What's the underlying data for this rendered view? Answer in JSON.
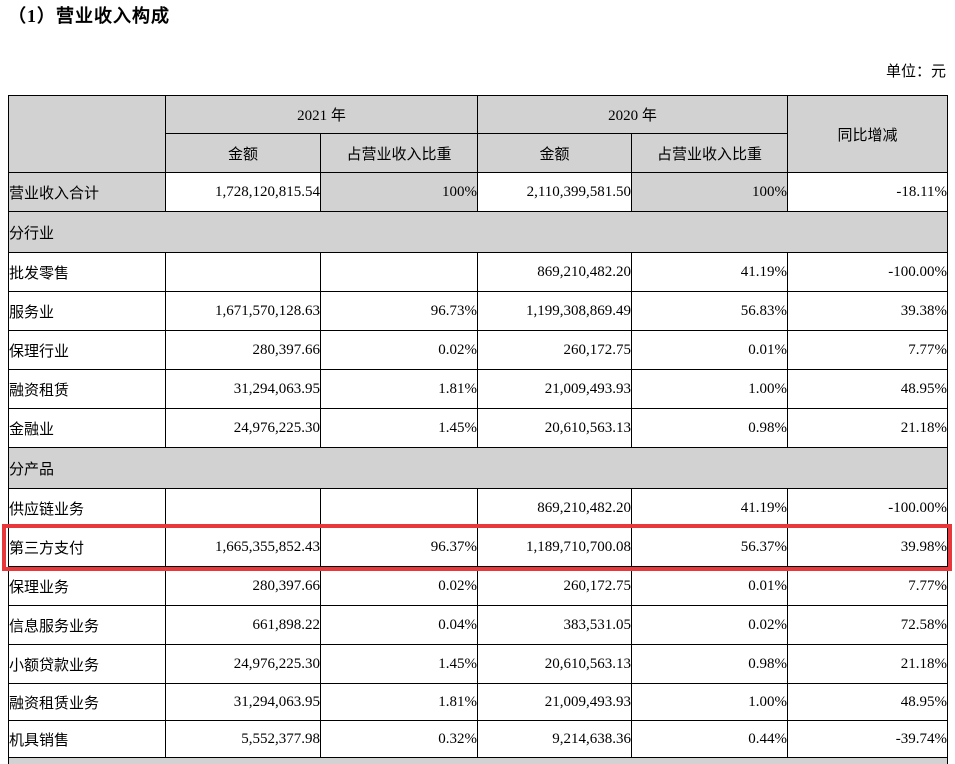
{
  "page": {
    "title": "（1）营业收入构成",
    "unit_label": "单位：元"
  },
  "table": {
    "header": {
      "year_2021": "2021 年",
      "year_2020": "2020 年",
      "yoy": "同比增减",
      "amount_2021": "金额",
      "share_2021": "占营业收入比重",
      "amount_2020": "金额",
      "share_2020": "占营业收入比重"
    },
    "rows": [
      {
        "label": "营业收入合计",
        "amount_2021": "1,728,120,815.54",
        "share_2021": "100%",
        "amount_2020": "2,110,399,581.50",
        "share_2020": "100%",
        "yoy": "-18.11%"
      },
      {
        "label": "分行业",
        "section": true
      },
      {
        "label": "批发零售",
        "amount_2021": "",
        "share_2021": "",
        "amount_2020": "869,210,482.20",
        "share_2020": "41.19%",
        "yoy": "-100.00%"
      },
      {
        "label": "服务业",
        "amount_2021": "1,671,570,128.63",
        "share_2021": "96.73%",
        "amount_2020": "1,199,308,869.49",
        "share_2020": "56.83%",
        "yoy": "39.38%"
      },
      {
        "label": "保理行业",
        "amount_2021": "280,397.66",
        "share_2021": "0.02%",
        "amount_2020": "260,172.75",
        "share_2020": "0.01%",
        "yoy": "7.77%"
      },
      {
        "label": "融资租赁",
        "amount_2021": "31,294,063.95",
        "share_2021": "1.81%",
        "amount_2020": "21,009,493.93",
        "share_2020": "1.00%",
        "yoy": "48.95%"
      },
      {
        "label": "金融业",
        "amount_2021": "24,976,225.30",
        "share_2021": "1.45%",
        "amount_2020": "20,610,563.13",
        "share_2020": "0.98%",
        "yoy": "21.18%"
      },
      {
        "label": "分产品",
        "section": true
      },
      {
        "label": "供应链业务",
        "amount_2021": "",
        "share_2021": "",
        "amount_2020": "869,210,482.20",
        "share_2020": "41.19%",
        "yoy": "-100.00%"
      },
      {
        "label": "第三方支付",
        "amount_2021": "1,665,355,852.43",
        "share_2021": "96.37%",
        "amount_2020": "1,189,710,700.08",
        "share_2020": "56.37%",
        "yoy": "39.98%",
        "highlighted": true
      },
      {
        "label": "保理业务",
        "amount_2021": "280,397.66",
        "share_2021": "0.02%",
        "amount_2020": "260,172.75",
        "share_2020": "0.01%",
        "yoy": "7.77%"
      },
      {
        "label": "信息服务业务",
        "amount_2021": "661,898.22",
        "share_2021": "0.04%",
        "amount_2020": "383,531.05",
        "share_2020": "0.02%",
        "yoy": "72.58%"
      },
      {
        "label": "小额贷款业务",
        "amount_2021": "24,976,225.30",
        "share_2021": "1.45%",
        "amount_2020": "20,610,563.13",
        "share_2020": "0.98%",
        "yoy": "21.18%"
      },
      {
        "label": "融资租赁业务",
        "amount_2021": "31,294,063.95",
        "share_2021": "1.81%",
        "amount_2020": "21,009,493.93",
        "share_2020": "1.00%",
        "yoy": "48.95%"
      },
      {
        "label": "机具销售",
        "amount_2021": "5,552,377.98",
        "share_2021": "0.32%",
        "amount_2020": "9,214,638.36",
        "share_2020": "0.44%",
        "yoy": "-39.74%"
      }
    ]
  },
  "annotation": {
    "highlight_color": "#e8383b"
  }
}
